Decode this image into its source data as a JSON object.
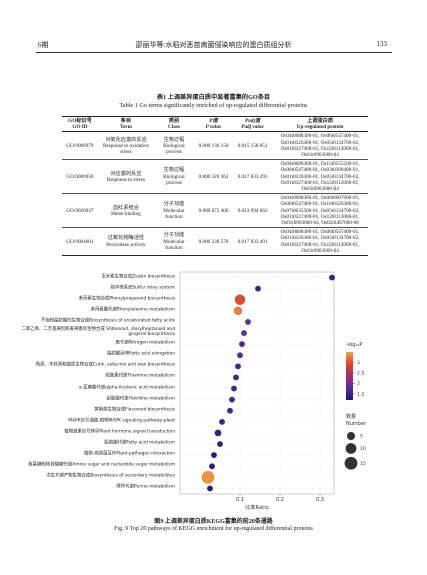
{
  "header": {
    "issue": "6期",
    "running_title": "邵丽华等:水稻对恶苗病菌侵染响应的蛋白质组分析",
    "page": "133"
  },
  "table": {
    "title_cn": "表1 上调差异蛋白质中显著富集的GO条目",
    "title_en": "Table 1 Go terms significantly enriched of up-regulated differential proteins",
    "columns": [
      [
        "GO标识号",
        "GO ID"
      ],
      [
        "条目",
        "Term"
      ],
      [
        "类别",
        "Class"
      ],
      [
        "P值",
        "P value"
      ],
      [
        "Padj值",
        "Padj value"
      ],
      [
        "上调蛋白质",
        "Up-regulated protein"
      ]
    ],
    "rows": [
      {
        "id": "GO:0006979",
        "term_cn": "对氧化应激的反应",
        "term_en": "Response to oxidative stress",
        "class_cn": "生物过程",
        "class_en": "Biological process",
        "p": "0.000 136 150",
        "padj": "0.015 158 051",
        "proteins": [
          "Os04t0688300-01, Os06t0547400-01,",
          "Os01t0326300-01, Os05t0134700-02,",
          "Os01t0327400-01, Os12t0112000-01,",
          "Os01t0963000-04"
        ]
      },
      {
        "id": "GO:0006950",
        "term_cn": "对应激的反应",
        "term_en": "Response to stress",
        "class_cn": "生物过程",
        "class_en": "Biological process",
        "p": "0.000 320 362",
        "padj": "0.017 833 491",
        "proteins": [
          "Os04t0688300-01, Os12t0555500-01,",
          "Os06t0547400-01, Os03t0300400-01,",
          "Os01t0326300-01, Os05t0134700-02,",
          "Os01t0327400-01, Os12t0112000-01,",
          "Os01t0963000-04"
        ]
      },
      {
        "id": "GO:0020037",
        "term_cn": "血红素结合",
        "term_en": "Heme binding",
        "class_cn": "分子功能",
        "class_en": "Molecular function",
        "p": "0.000 073 400",
        "padj": "0.013 994 062",
        "proteins": [
          "Os04t0688300-01, Os06t0607000-01,",
          "Os06t0547400-01, Os10t0326300-01,",
          "Os07t0635500-01, Os05t0134700-02,",
          "Os01t0327400-01, Os12t0112000-01,",
          "Os01t0963000-04, Os02t0467000-00"
        ]
      },
      {
        "id": "GO:0004601",
        "term_cn": "过氧化物酶活性",
        "term_en": "Peroxidase activity",
        "class_cn": "分子功能",
        "class_en": "Molecular function",
        "p": "0.000 238 578",
        "padj": "0.017 833 491",
        "proteins": [
          "Os04t0688300-01, Os06t0547400-01,",
          "Os01t0326300-01, Os05t0134700-02,",
          "Os01t0327400-01, Os12t0112000-01,",
          "Os01t0963000-04"
        ]
      }
    ]
  },
  "chart_data": {
    "type": "bubble",
    "categories": [
      "玉米素生物合成Zeatin biosynthesis",
      "硫中继系统Sulfur relay system",
      "苯丙素生物合成Phenylpropanoid biosynthesis",
      "苯丙氨酸代谢Phenylalanine metabolism",
      "不饱和脂肪酸的生物合成Biosynthesis of unsaturated fatty acids",
      "二苯乙烯、二芳基庚烷和姜辣素的生物合成 Stilbenoid, diarylheptanoid and gingerol biosynthesis",
      "氮代谢Nitrogen metabolism",
      "脂肪酸延伸Fatty acid elongation",
      "角质、木栓质和蜡质生物合成Cutin, suberine and wax biosynthesis",
      "硫胺素代谢Thiamine metabolism",
      "α-亚麻酸代谢alpha-linolenic acid metabolism",
      "组氨酸代谢Histidine metabolism",
      "黄酮类生物合成Flavonoid biosynthesis",
      "MAPK信号通路-植物MAPK signaling pathway-plant",
      "植物激素信号转导Plant hormone signal transduction",
      "脂肪酸代谢Fatty acid metabolism",
      "植物-病原菌互作Plant-pathogen interaction",
      "氨基糖和核苷酸糖代谢Amino sugar and nucleotide sugar metabolism",
      "次生代谢产物生物合成Biosynthesis of secondary metabolites",
      "嘌呤代谢Purine metabolism"
    ],
    "values": [
      0.33,
      0.145,
      0.1,
      0.095,
      0.12,
      0.11,
      0.105,
      0.1,
      0.095,
      0.09,
      0.085,
      0.08,
      0.075,
      0.055,
      0.045,
      0.05,
      0.035,
      0.03,
      0.02,
      0.025
    ],
    "sizes": [
      2,
      2,
      9,
      5,
      2,
      2,
      2,
      2,
      2,
      2,
      2,
      2,
      2,
      2,
      3,
      2,
      2,
      2,
      14,
      2
    ],
    "color_values": [
      1.4,
      1.5,
      3.0,
      3.3,
      1.9,
      1.8,
      1.7,
      1.7,
      1.6,
      1.6,
      1.6,
      1.6,
      1.5,
      1.5,
      1.4,
      1.4,
      1.3,
      1.3,
      3.4,
      1.3
    ],
    "colormap": [
      "#1c1a78",
      "#5a2a9a",
      "#a2307e",
      "#e0402e",
      "#f2a33c"
    ],
    "color_lim": [
      1.2,
      3.5
    ],
    "color_label": "-log₁₀P",
    "color_ticks": [
      1.5,
      2,
      2.5,
      3
    ],
    "size_label_cn": "数量",
    "size_label_en": "Number",
    "size_legend": [
      5,
      10,
      15
    ],
    "xlabel": "比率Ratio",
    "xlim": [
      -0.05,
      0.335
    ],
    "xticks": [
      0.1,
      0.2,
      0.3
    ],
    "grid": true
  },
  "caption": {
    "cn": "图9 上调差异蛋白质KEGG富集的前20条通路",
    "en": "Fig. 9 Top 20 pathways of KEGG enrichment for up-regulated differential proteins"
  }
}
